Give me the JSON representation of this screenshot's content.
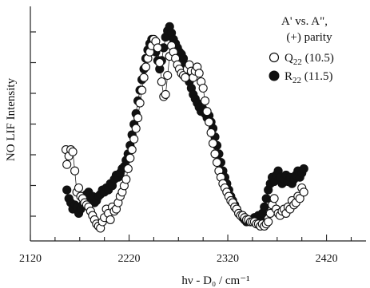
{
  "chart_data": {
    "type": "scatter",
    "title": "",
    "xlabel": "hν - D₀ / cm⁻¹",
    "ylabel": "NO LIF Intensity",
    "xlim": [
      2120,
      2460
    ],
    "ylim": [
      0,
      1
    ],
    "grid": false,
    "legend_position": "top-right",
    "x_ticks": [
      2120,
      2220,
      2320,
      2420
    ],
    "y_ticks_labeled": false,
    "legend": {
      "title_line1": "A' vs. A\",",
      "title_line2": "(+) parity"
    },
    "series": [
      {
        "name": "Q22 (10.5)",
        "name_main": "Q",
        "name_sub": "22",
        "name_tail": " (10.5)",
        "marker": "open-circle",
        "points": [
          [
            2156,
            0.4
          ],
          [
            2157,
            0.33
          ],
          [
            2159,
            0.37
          ],
          [
            2161,
            0.4
          ],
          [
            2163,
            0.39
          ],
          [
            2165,
            0.3
          ],
          [
            2167,
            0.2
          ],
          [
            2169,
            0.22
          ],
          [
            2171,
            0.18
          ],
          [
            2173,
            0.17
          ],
          [
            2175,
            0.15
          ],
          [
            2177,
            0.14
          ],
          [
            2179,
            0.13
          ],
          [
            2181,
            0.11
          ],
          [
            2183,
            0.09
          ],
          [
            2185,
            0.07
          ],
          [
            2187,
            0.05
          ],
          [
            2189,
            0.04
          ],
          [
            2191,
            0.03
          ],
          [
            2193,
            0.06
          ],
          [
            2195,
            0.08
          ],
          [
            2197,
            0.12
          ],
          [
            2199,
            0.1
          ],
          [
            2201,
            0.07
          ],
          [
            2203,
            0.13
          ],
          [
            2205,
            0.11
          ],
          [
            2207,
            0.12
          ],
          [
            2209,
            0.15
          ],
          [
            2211,
            0.18
          ],
          [
            2213,
            0.2
          ],
          [
            2215,
            0.23
          ],
          [
            2217,
            0.26
          ],
          [
            2219,
            0.31
          ],
          [
            2221,
            0.36
          ],
          [
            2223,
            0.4
          ],
          [
            2225,
            0.45
          ],
          [
            2227,
            0.5
          ],
          [
            2229,
            0.55
          ],
          [
            2231,
            0.62
          ],
          [
            2233,
            0.68
          ],
          [
            2235,
            0.74
          ],
          [
            2237,
            0.79
          ],
          [
            2239,
            0.83
          ],
          [
            2241,
            0.86
          ],
          [
            2243,
            0.89
          ],
          [
            2245,
            0.92
          ],
          [
            2247,
            0.91
          ],
          [
            2249,
            0.88
          ],
          [
            2251,
            0.81
          ],
          [
            2253,
            0.72
          ],
          [
            2255,
            0.65
          ],
          [
            2257,
            0.66
          ],
          [
            2259,
            0.75
          ],
          [
            2261,
            0.84
          ],
          [
            2263,
            0.89
          ],
          [
            2265,
            0.86
          ],
          [
            2267,
            0.83
          ],
          [
            2269,
            0.8
          ],
          [
            2271,
            0.78
          ],
          [
            2273,
            0.76
          ],
          [
            2275,
            0.75
          ],
          [
            2277,
            0.74
          ],
          [
            2279,
            0.78
          ],
          [
            2281,
            0.8
          ],
          [
            2283,
            0.77
          ],
          [
            2285,
            0.74
          ],
          [
            2287,
            0.77
          ],
          [
            2289,
            0.79
          ],
          [
            2291,
            0.76
          ],
          [
            2293,
            0.72
          ],
          [
            2295,
            0.69
          ],
          [
            2297,
            0.63
          ],
          [
            2299,
            0.58
          ],
          [
            2301,
            0.53
          ],
          [
            2303,
            0.48
          ],
          [
            2305,
            0.43
          ],
          [
            2307,
            0.38
          ],
          [
            2309,
            0.34
          ],
          [
            2311,
            0.3
          ],
          [
            2313,
            0.27
          ],
          [
            2315,
            0.24
          ],
          [
            2317,
            0.22
          ],
          [
            2319,
            0.2
          ],
          [
            2321,
            0.18
          ],
          [
            2323,
            0.16
          ],
          [
            2325,
            0.15
          ],
          [
            2327,
            0.13
          ],
          [
            2329,
            0.12
          ],
          [
            2331,
            0.1
          ],
          [
            2333,
            0.09
          ],
          [
            2335,
            0.09
          ],
          [
            2337,
            0.08
          ],
          [
            2339,
            0.07
          ],
          [
            2341,
            0.07
          ],
          [
            2343,
            0.06
          ],
          [
            2345,
            0.06
          ],
          [
            2347,
            0.06
          ],
          [
            2349,
            0.05
          ],
          [
            2351,
            0.05
          ],
          [
            2353,
            0.04
          ],
          [
            2355,
            0.05
          ],
          [
            2357,
            0.04
          ],
          [
            2359,
            0.05
          ],
          [
            2361,
            0.06
          ],
          [
            2363,
            0.1
          ],
          [
            2365,
            0.14
          ],
          [
            2367,
            0.17
          ],
          [
            2369,
            0.12
          ],
          [
            2371,
            0.1
          ],
          [
            2373,
            0.09
          ],
          [
            2375,
            0.11
          ],
          [
            2377,
            0.12
          ],
          [
            2379,
            0.1
          ],
          [
            2381,
            0.13
          ],
          [
            2383,
            0.12
          ],
          [
            2385,
            0.16
          ],
          [
            2387,
            0.14
          ],
          [
            2389,
            0.15
          ],
          [
            2391,
            0.18
          ],
          [
            2393,
            0.17
          ],
          [
            2395,
            0.22
          ],
          [
            2397,
            0.2
          ]
        ]
      },
      {
        "name": "R22 (11.5)",
        "name_main": "R",
        "name_sub": "22",
        "name_tail": " (11.5)",
        "marker": "filled-circle",
        "points": [
          [
            2157,
            0.21
          ],
          [
            2159,
            0.17
          ],
          [
            2161,
            0.15
          ],
          [
            2163,
            0.12
          ],
          [
            2165,
            0.14
          ],
          [
            2167,
            0.13
          ],
          [
            2169,
            0.1
          ],
          [
            2171,
            0.12
          ],
          [
            2173,
            0.14
          ],
          [
            2175,
            0.16
          ],
          [
            2177,
            0.19
          ],
          [
            2179,
            0.2
          ],
          [
            2181,
            0.17
          ],
          [
            2183,
            0.18
          ],
          [
            2185,
            0.15
          ],
          [
            2187,
            0.16
          ],
          [
            2189,
            0.18
          ],
          [
            2191,
            0.19
          ],
          [
            2193,
            0.21
          ],
          [
            2195,
            0.2
          ],
          [
            2197,
            0.22
          ],
          [
            2199,
            0.21
          ],
          [
            2201,
            0.24
          ],
          [
            2203,
            0.23
          ],
          [
            2205,
            0.26
          ],
          [
            2207,
            0.28
          ],
          [
            2209,
            0.27
          ],
          [
            2211,
            0.29
          ],
          [
            2213,
            0.31
          ],
          [
            2215,
            0.32
          ],
          [
            2217,
            0.35
          ],
          [
            2219,
            0.38
          ],
          [
            2221,
            0.42
          ],
          [
            2223,
            0.47
          ],
          [
            2225,
            0.52
          ],
          [
            2227,
            0.57
          ],
          [
            2229,
            0.63
          ],
          [
            2231,
            0.68
          ],
          [
            2233,
            0.73
          ],
          [
            2235,
            0.78
          ],
          [
            2237,
            0.83
          ],
          [
            2239,
            0.87
          ],
          [
            2241,
            0.9
          ],
          [
            2243,
            0.92
          ],
          [
            2245,
            0.9
          ],
          [
            2247,
            0.86
          ],
          [
            2249,
            0.82
          ],
          [
            2251,
            0.78
          ],
          [
            2253,
            0.82
          ],
          [
            2255,
            0.88
          ],
          [
            2257,
            0.93
          ],
          [
            2259,
            0.96
          ],
          [
            2261,
            0.98
          ],
          [
            2263,
            0.95
          ],
          [
            2265,
            0.92
          ],
          [
            2267,
            0.9
          ],
          [
            2269,
            0.88
          ],
          [
            2271,
            0.86
          ],
          [
            2273,
            0.85
          ],
          [
            2275,
            0.83
          ],
          [
            2277,
            0.8
          ],
          [
            2279,
            0.76
          ],
          [
            2281,
            0.72
          ],
          [
            2283,
            0.69
          ],
          [
            2285,
            0.66
          ],
          [
            2287,
            0.64
          ],
          [
            2289,
            0.62
          ],
          [
            2291,
            0.6
          ],
          [
            2293,
            0.58
          ],
          [
            2295,
            0.59
          ],
          [
            2297,
            0.57
          ],
          [
            2299,
            0.55
          ],
          [
            2301,
            0.56
          ],
          [
            2303,
            0.53
          ],
          [
            2305,
            0.5
          ],
          [
            2307,
            0.46
          ],
          [
            2309,
            0.42
          ],
          [
            2311,
            0.38
          ],
          [
            2313,
            0.34
          ],
          [
            2315,
            0.3
          ],
          [
            2317,
            0.27
          ],
          [
            2319,
            0.24
          ],
          [
            2321,
            0.21
          ],
          [
            2323,
            0.18
          ],
          [
            2325,
            0.16
          ],
          [
            2327,
            0.14
          ],
          [
            2329,
            0.12
          ],
          [
            2331,
            0.1
          ],
          [
            2333,
            0.09
          ],
          [
            2335,
            0.08
          ],
          [
            2337,
            0.07
          ],
          [
            2339,
            0.06
          ],
          [
            2341,
            0.07
          ],
          [
            2343,
            0.06
          ],
          [
            2345,
            0.07
          ],
          [
            2347,
            0.08
          ],
          [
            2349,
            0.07
          ],
          [
            2351,
            0.09
          ],
          [
            2353,
            0.08
          ],
          [
            2355,
            0.1
          ],
          [
            2357,
            0.13
          ],
          [
            2359,
            0.17
          ],
          [
            2361,
            0.21
          ],
          [
            2363,
            0.24
          ],
          [
            2365,
            0.27
          ],
          [
            2367,
            0.25
          ],
          [
            2369,
            0.28
          ],
          [
            2371,
            0.3
          ],
          [
            2373,
            0.27
          ],
          [
            2375,
            0.24
          ],
          [
            2377,
            0.26
          ],
          [
            2379,
            0.28
          ],
          [
            2381,
            0.25
          ],
          [
            2383,
            0.27
          ],
          [
            2385,
            0.24
          ],
          [
            2387,
            0.26
          ],
          [
            2389,
            0.28
          ],
          [
            2391,
            0.3
          ],
          [
            2393,
            0.27
          ],
          [
            2395,
            0.29
          ],
          [
            2397,
            0.31
          ]
        ]
      }
    ]
  }
}
